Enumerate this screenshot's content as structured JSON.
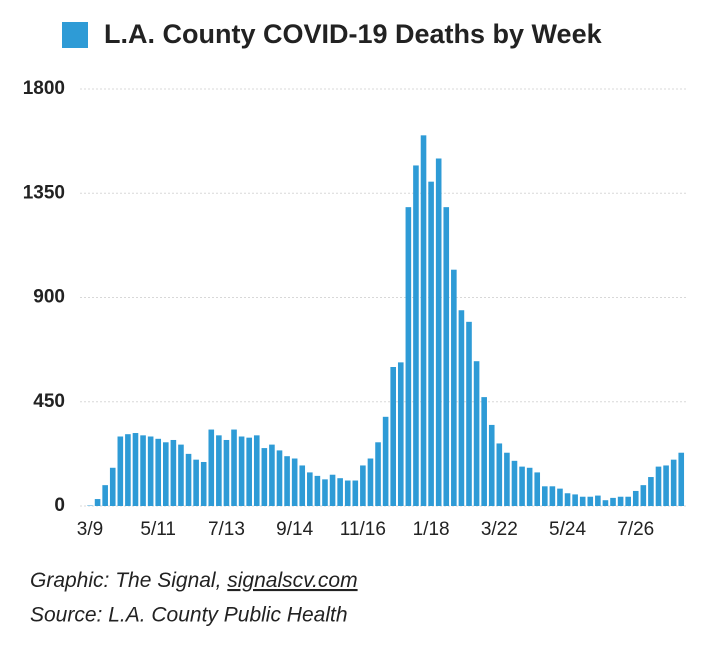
{
  "chart_data": {
    "type": "bar",
    "categories": [
      "3/9",
      null,
      null,
      null,
      null,
      null,
      null,
      null,
      null,
      "5/11",
      null,
      null,
      null,
      null,
      null,
      null,
      null,
      null,
      "7/13",
      null,
      null,
      null,
      null,
      null,
      null,
      null,
      null,
      "9/14",
      null,
      null,
      null,
      null,
      null,
      null,
      null,
      null,
      "11/16",
      null,
      null,
      null,
      null,
      null,
      null,
      null,
      null,
      "1/18",
      null,
      null,
      null,
      null,
      null,
      null,
      null,
      null,
      "3/22",
      null,
      null,
      null,
      null,
      null,
      null,
      null,
      null,
      "5/24",
      null,
      null,
      null,
      null,
      null,
      null,
      null,
      null,
      "7/26",
      null,
      null,
      null,
      null,
      null,
      null
    ],
    "series": [
      {
        "name": "L.A. County COVID-19 Deaths by Week",
        "color": "#2e9bd6",
        "values": [
          2,
          30,
          90,
          165,
          300,
          310,
          315,
          305,
          300,
          290,
          275,
          285,
          265,
          225,
          200,
          190,
          330,
          305,
          285,
          330,
          300,
          295,
          305,
          250,
          265,
          240,
          215,
          205,
          175,
          145,
          130,
          115,
          135,
          120,
          110,
          110,
          175,
          205,
          275,
          385,
          600,
          620,
          1290,
          1470,
          1600,
          1400,
          1500,
          1290,
          1020,
          845,
          795,
          625,
          470,
          350,
          270,
          230,
          195,
          170,
          165,
          145,
          85,
          85,
          75,
          55,
          50,
          40,
          40,
          45,
          25,
          35,
          40,
          40,
          65,
          90,
          125,
          170,
          175,
          200,
          230
        ]
      }
    ],
    "ylim": [
      0,
      1800
    ],
    "yticks": [
      0,
      450,
      900,
      1350,
      1800
    ],
    "grid": true,
    "legend": "top",
    "credit": {
      "prefix": "Graphic: The Signal, ",
      "link": "signalscv.com"
    },
    "source": "Source: L.A. County Public Health"
  }
}
